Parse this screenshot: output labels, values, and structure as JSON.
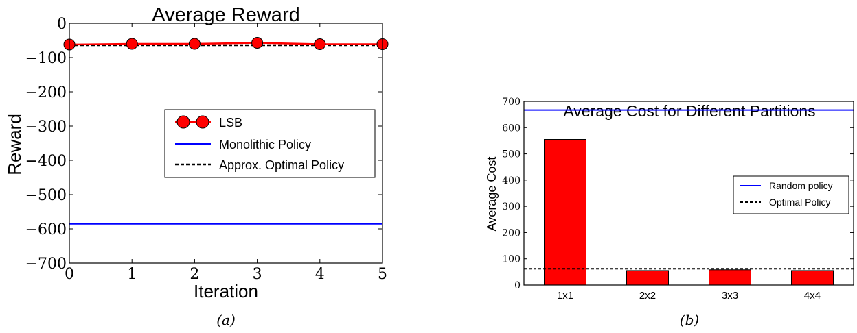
{
  "chart_data": [
    {
      "type": "line",
      "title": "Average Reward",
      "xlabel": "Iteration",
      "ylabel": "Reward",
      "xlim": [
        0,
        5
      ],
      "ylim": [
        -700,
        0
      ],
      "xticks": [
        "0",
        "1",
        "2",
        "3",
        "4",
        "5"
      ],
      "yticks": [
        "0",
        "−100",
        "−200",
        "−300",
        "−400",
        "−500",
        "−600",
        "−700"
      ],
      "grid": false,
      "legend_position": "center-right",
      "series": [
        {
          "name": "LSB",
          "style": "solid-marker",
          "color": "#ff0000",
          "x": [
            0,
            1,
            2,
            3,
            4,
            5
          ],
          "y": [
            -62,
            -60,
            -60,
            -57,
            -61,
            -61
          ]
        },
        {
          "name": "Monolithic Policy",
          "style": "solid",
          "color": "#0000ff",
          "x": [
            0,
            5
          ],
          "y": [
            -585,
            -585
          ]
        },
        {
          "name": "Approx. Optimal Policy",
          "style": "dashed",
          "color": "#000000",
          "x": [
            0,
            5
          ],
          "y": [
            -64,
            -64
          ]
        }
      ],
      "caption": "(a)"
    },
    {
      "type": "bar",
      "title": "Average Cost for Different Partitions",
      "xlabel": "",
      "ylabel": "Average Cost",
      "categories": [
        "1x1",
        "2x2",
        "3x3",
        "4x4"
      ],
      "values": [
        555,
        55,
        58,
        55
      ],
      "bar_color": "#ff0000",
      "ylim": [
        0,
        700
      ],
      "yticks": [
        "0",
        "100",
        "200",
        "300",
        "400",
        "500",
        "600",
        "700"
      ],
      "grid": false,
      "legend_position": "center-right",
      "lines": [
        {
          "name": "Random policy",
          "style": "solid",
          "color": "#0000ff",
          "y": 667
        },
        {
          "name": "Optimal Policy",
          "style": "dashed",
          "color": "#000000",
          "y": 62
        }
      ],
      "caption": "(b)"
    }
  ]
}
